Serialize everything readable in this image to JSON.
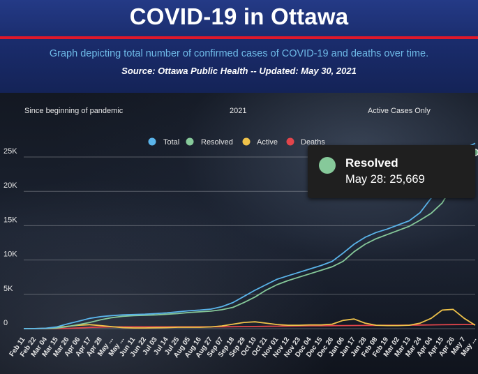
{
  "header": {
    "title": "COVID-19 in Ottawa",
    "subtitle": "Graph depicting total number of confirmed cases of COVID-19 and deaths over time.",
    "source": "Source:  Ottawa Public Health -- Updated:  May 30, 2021"
  },
  "tabs": {
    "since_beginning": "Since beginning of pandemic",
    "year": "2021",
    "active_only": "Active Cases Only"
  },
  "tooltip": {
    "series": "Resolved",
    "value": "May 28: 25,669",
    "color": "#86c99a"
  },
  "colors": {
    "total": "#5ab4ea",
    "resolved": "#86c99a",
    "active": "#efc24a",
    "deaths": "#e2454b"
  },
  "chart_data": {
    "type": "line",
    "title": "",
    "xlabel": "",
    "ylabel": "",
    "ylim": [
      0,
      28000
    ],
    "yticks": [
      "0",
      "5K",
      "10K",
      "15K",
      "20K",
      "25K"
    ],
    "ytick_values": [
      0,
      5000,
      10000,
      15000,
      20000,
      25000
    ],
    "grid": true,
    "legend_position": "top",
    "x": [
      "Feb 11",
      "Feb 22",
      "Mar 04",
      "Mar 15",
      "Mar 26",
      "Apr 06",
      "Apr 17",
      "Apr 28",
      "May ...",
      "May ...",
      "Jun 11",
      "Jun 22",
      "Jul 03",
      "Jul 14",
      "Jul 25",
      "Aug 05",
      "Aug 16",
      "Aug 27",
      "Sep 07",
      "Sep 18",
      "Sep 29",
      "Oct 10",
      "Oct 21",
      "Nov 01",
      "Nov 12",
      "Nov 23",
      "Dec 04",
      "Dec 15",
      "Dec 26",
      "Jan 06",
      "Jan 17",
      "Jan 28",
      "Feb 08",
      "Feb 19",
      "Mar 02",
      "Mar 13",
      "Mar 24",
      "Apr 04",
      "Apr 15",
      "Apr 26",
      "May 7",
      "May ..."
    ],
    "series": [
      {
        "name": "Total",
        "color": "#5ab4ea",
        "values": [
          0,
          10,
          60,
          250,
          700,
          1100,
          1500,
          1750,
          1900,
          2000,
          2050,
          2100,
          2200,
          2300,
          2450,
          2600,
          2700,
          2850,
          3200,
          3800,
          4700,
          5600,
          6400,
          7200,
          7700,
          8200,
          8700,
          9200,
          9800,
          11000,
          12300,
          13300,
          14000,
          14500,
          15100,
          15700,
          16900,
          19000,
          22000,
          24500,
          26200,
          27000
        ]
      },
      {
        "name": "Resolved",
        "color": "#86c99a",
        "values": [
          0,
          0,
          10,
          80,
          300,
          600,
          900,
          1300,
          1600,
          1800,
          1900,
          1950,
          2000,
          2100,
          2200,
          2350,
          2450,
          2550,
          2750,
          3100,
          3800,
          4600,
          5600,
          6400,
          7000,
          7500,
          8000,
          8500,
          9000,
          9800,
          11200,
          12300,
          13100,
          13700,
          14300,
          14900,
          15800,
          16800,
          18300,
          21000,
          24000,
          25669
        ]
      },
      {
        "name": "Active",
        "color": "#efc24a",
        "values": [
          0,
          10,
          50,
          170,
          350,
          500,
          580,
          450,
          280,
          150,
          100,
          100,
          130,
          150,
          200,
          200,
          200,
          250,
          400,
          650,
          900,
          1000,
          800,
          600,
          500,
          500,
          550,
          550,
          650,
          1200,
          1400,
          800,
          500,
          450,
          450,
          500,
          800,
          1500,
          2700,
          2800,
          1500,
          500
        ]
      },
      {
        "name": "Deaths",
        "color": "#e2454b",
        "values": [
          0,
          0,
          2,
          10,
          40,
          100,
          180,
          230,
          250,
          260,
          260,
          262,
          265,
          265,
          265,
          265,
          265,
          268,
          270,
          280,
          300,
          320,
          340,
          360,
          380,
          400,
          420,
          430,
          440,
          450,
          460,
          470,
          480,
          490,
          500,
          510,
          525,
          545,
          570,
          590,
          600,
          605
        ]
      }
    ]
  }
}
